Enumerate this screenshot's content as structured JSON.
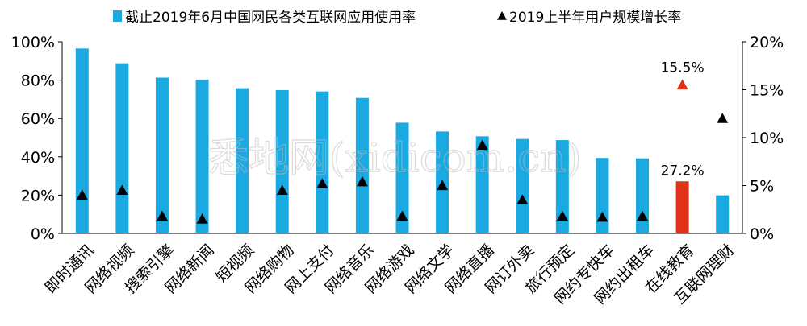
{
  "chart_data": {
    "type": "bar",
    "categories": [
      "即时通讯",
      "网络视频",
      "搜索引擎",
      "网络新闻",
      "短视频",
      "网络购物",
      "网上支付",
      "网络音乐",
      "网络游戏",
      "网络文学",
      "网络直播",
      "网订外卖",
      "旅行预定",
      "网约专快车",
      "网约出租车",
      "在线教育",
      "互联网理财"
    ],
    "series": [
      {
        "name": "截止2019年6月中国网民各类互联网应用使用率",
        "type": "bar",
        "axis": "left",
        "values": [
          96.5,
          88.8,
          81.3,
          80.3,
          75.8,
          74.8,
          74.1,
          70.7,
          57.8,
          53.2,
          50.7,
          49.3,
          48.7,
          39.4,
          39.2,
          27.2,
          19.9
        ],
        "color": "#1aa9e0",
        "highlight_color": "#e03217",
        "highlight_index": 15
      },
      {
        "name": "2019上半年用户规模增长率",
        "type": "marker",
        "axis": "right",
        "values": [
          4.0,
          4.5,
          1.8,
          1.5,
          null,
          4.5,
          5.2,
          5.4,
          1.8,
          5.0,
          9.2,
          3.5,
          1.8,
          1.7,
          1.8,
          15.5,
          12.0
        ],
        "color": "#000000",
        "highlight_color": "#e03217",
        "highlight_index": 15
      }
    ],
    "data_labels": [
      "15.5%",
      "27.2%"
    ],
    "y_left": {
      "min": 0,
      "max": 100,
      "ticks": [
        "0%",
        "20%",
        "40%",
        "60%",
        "80%",
        "100%"
      ]
    },
    "y_right": {
      "min": 0,
      "max": 20,
      "ticks": [
        "0%",
        "5%",
        "10%",
        "15%",
        "20%"
      ]
    },
    "legend": {
      "position": "top",
      "items": [
        "截止2019年6月中国网民各类互联网应用使用率",
        "2019上半年用户规模增长率"
      ]
    },
    "grid": false,
    "title": "",
    "xlabel": "",
    "ylabel": ""
  },
  "watermark": "悉地网(xidicom.cn)"
}
